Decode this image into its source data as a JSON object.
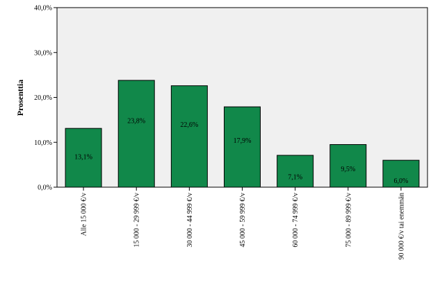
{
  "chart_data": {
    "type": "bar",
    "ylabel": "Prosenttia",
    "xlabel": "",
    "ylim": [
      0,
      40
    ],
    "yticks": [
      {
        "value": 0,
        "label": "0,0%"
      },
      {
        "value": 10,
        "label": "10,0%"
      },
      {
        "value": 20,
        "label": "20,0%"
      },
      {
        "value": 30,
        "label": "30,0%"
      },
      {
        "value": 40,
        "label": "40,0%"
      }
    ],
    "categories": [
      "Alle 15 000 €/v",
      "15 000 - 29 999 €/v",
      "30 000 - 44 999 €/v",
      "45 000 - 59 999 €/v",
      "60 000 - 74 999 €/v",
      "75 000 - 89 999 €/v",
      "90 000 €/v tai enemmän"
    ],
    "values": [
      13.1,
      23.8,
      22.6,
      17.9,
      7.1,
      9.5,
      6.0
    ],
    "data_labels": [
      "13,1%",
      "23,8%",
      "22,6%",
      "17,9%",
      "7,1%",
      "9,5%",
      "6,0%"
    ],
    "colors": {
      "bar": "#11884a",
      "bar_edge": "#000000",
      "plot_bg": "#f0f0f0"
    },
    "grid": false,
    "legend": "none"
  }
}
